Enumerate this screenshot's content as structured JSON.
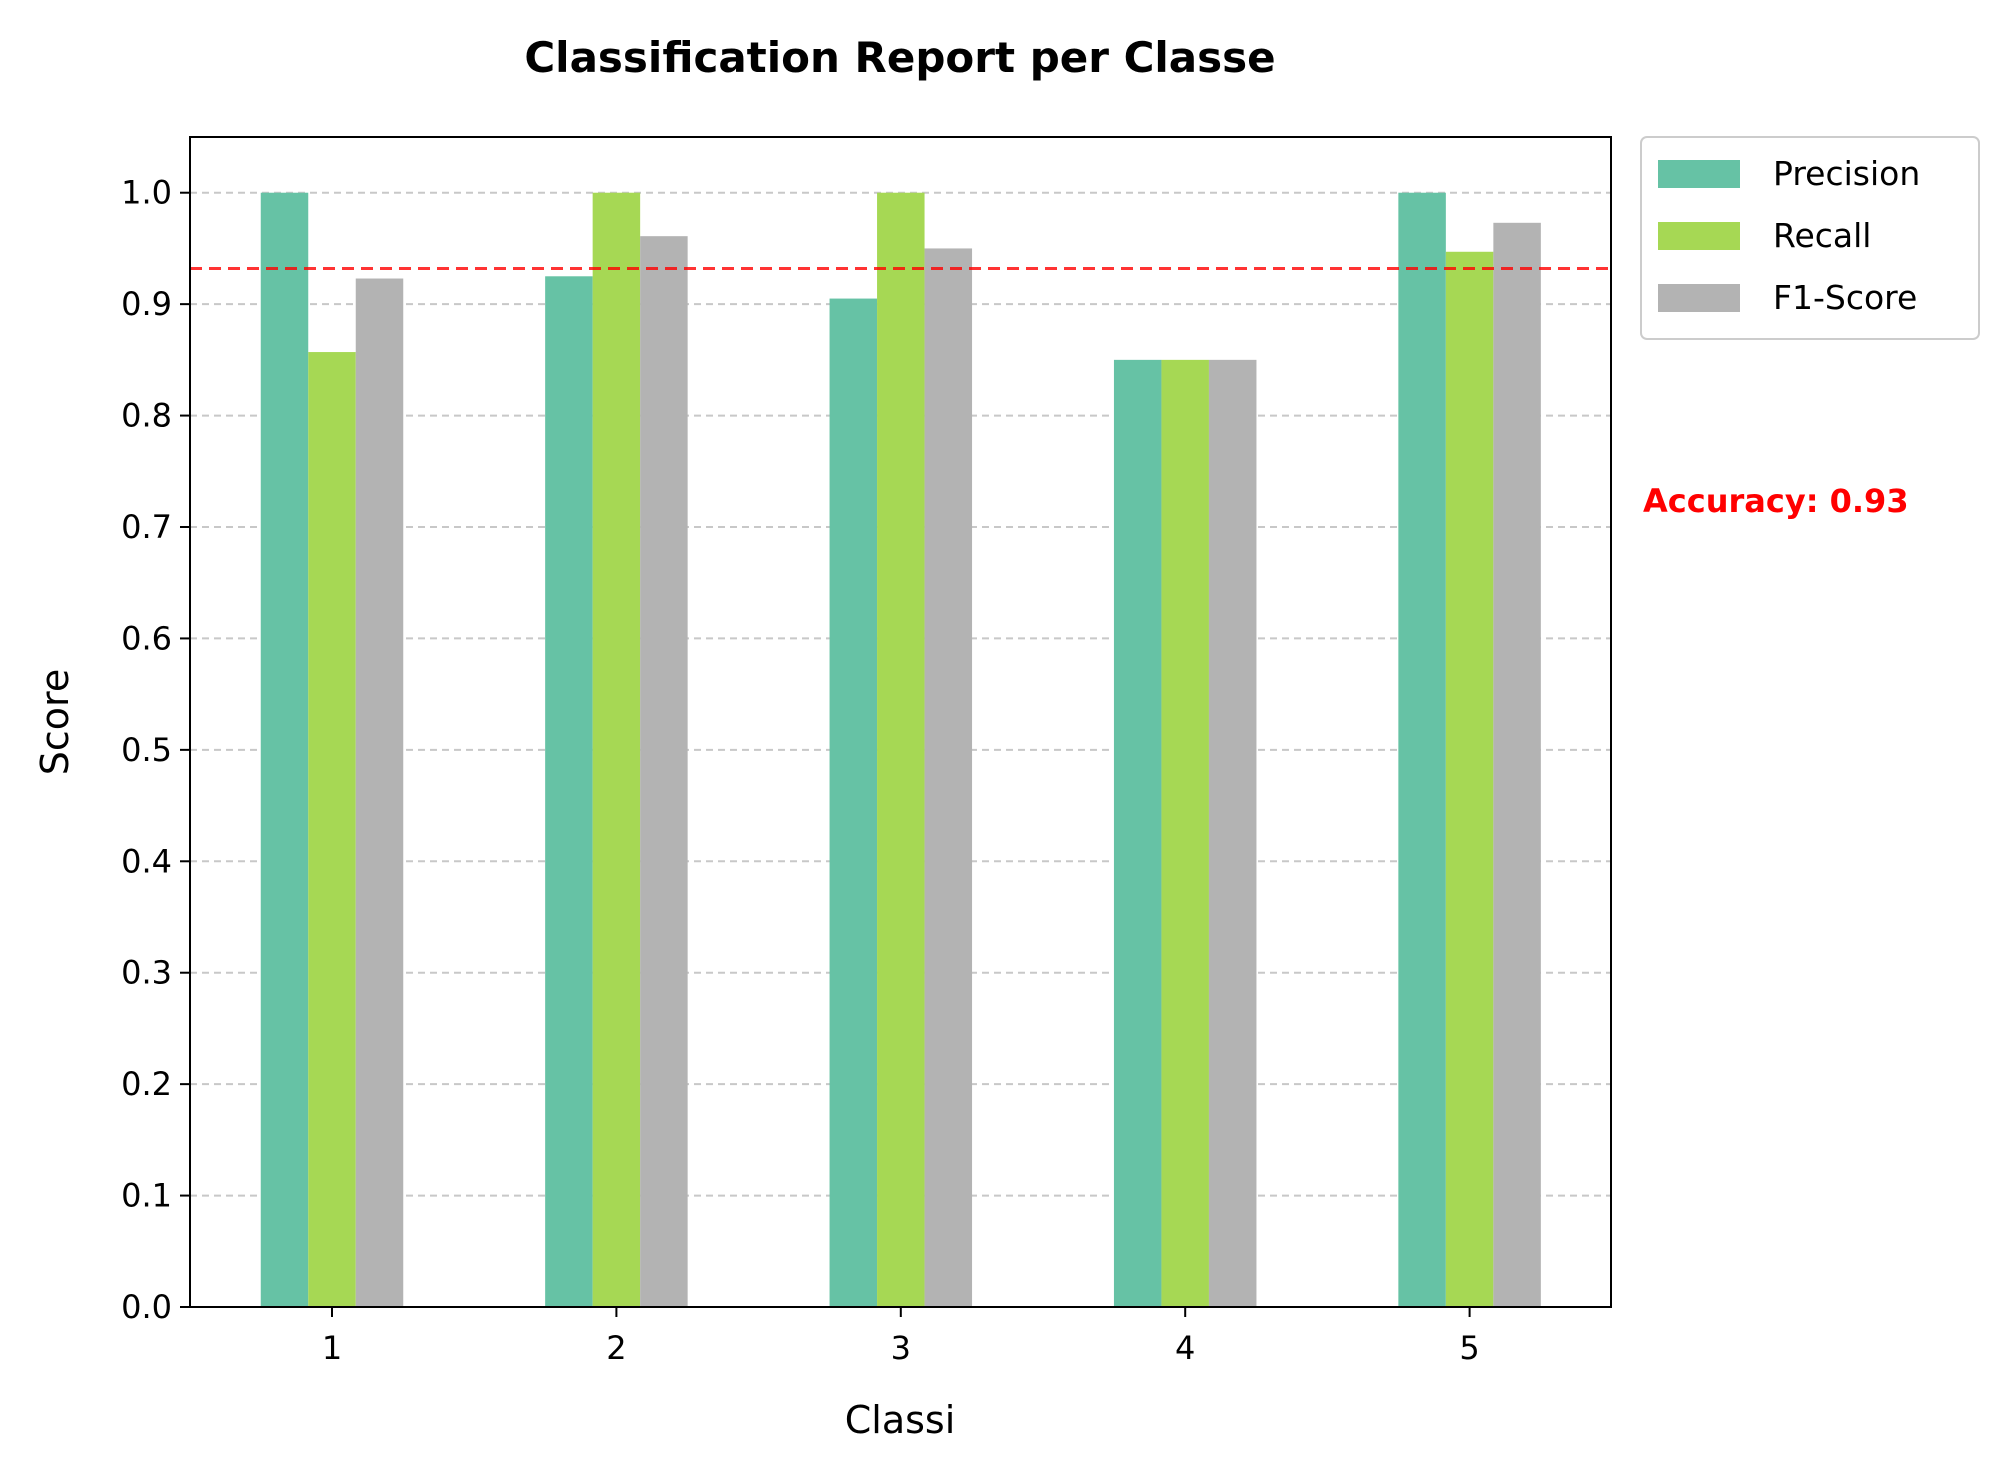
{
  "chart_data": {
    "type": "bar",
    "title": "Classification Report per Classe",
    "xlabel": "Classi",
    "ylabel": "Score",
    "categories": [
      "1",
      "2",
      "3",
      "4",
      "5"
    ],
    "series": [
      {
        "name": "Precision",
        "color": "#66c2a5",
        "values": [
          1.0,
          0.925,
          0.905,
          0.85,
          1.0
        ]
      },
      {
        "name": "Recall",
        "color": "#a6d854",
        "values": [
          0.857,
          1.0,
          1.0,
          0.85,
          0.947
        ]
      },
      {
        "name": "F1-Score",
        "color": "#b3b3b3",
        "values": [
          0.923,
          0.961,
          0.95,
          0.85,
          0.973
        ]
      }
    ],
    "ylim": [
      0,
      1.05
    ],
    "yticks": [
      "0.0",
      "0.1",
      "0.2",
      "0.3",
      "0.4",
      "0.5",
      "0.6",
      "0.7",
      "0.8",
      "0.9",
      "1.0"
    ],
    "grid": "horizontal dashed",
    "legend": "outside-top-right",
    "accuracy": {
      "value": 0.932,
      "label": "Accuracy: 0.93",
      "color": "#ff0000",
      "line_style": "dashed"
    }
  }
}
